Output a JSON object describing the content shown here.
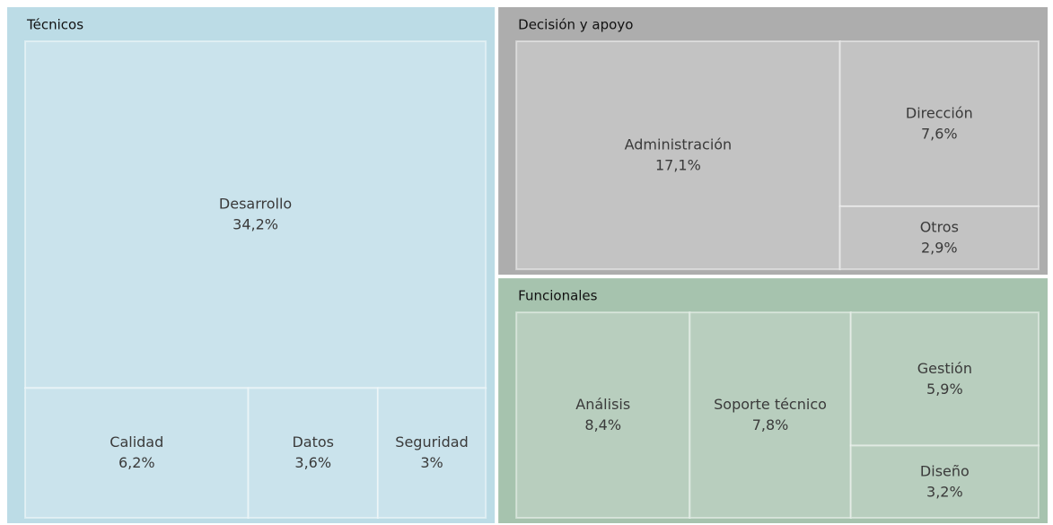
{
  "chart_data": {
    "type": "treemap",
    "groups": [
      {
        "name": "Técnicos",
        "color": "#bcdce6",
        "tile_color": "#cae3ec",
        "categories": [
          "Desarrollo",
          "Calidad",
          "Datos",
          "Seguridad"
        ],
        "values": [
          34.2,
          6.2,
          3.6,
          3
        ],
        "value_labels": [
          "34,2%",
          "6,2%",
          "3,6%",
          "3%"
        ]
      },
      {
        "name": "Decisión y apoyo",
        "color": "#adadad",
        "tile_color": "#c3c3c3",
        "categories": [
          "Administración",
          "Dirección",
          "Otros"
        ],
        "values": [
          17.1,
          7.6,
          2.9
        ],
        "value_labels": [
          "17,1%",
          "7,6%",
          "2,9%"
        ]
      },
      {
        "name": "Funcionales",
        "color": "#a6c3ae",
        "tile_color": "#b8cebe",
        "categories": [
          "Análisis",
          "Soporte técnico",
          "Gestión",
          "Diseño"
        ],
        "values": [
          8.4,
          7.8,
          5.9,
          3.2
        ],
        "value_labels": [
          "8,4%",
          "7,8%",
          "5,9%",
          "3,2%"
        ]
      }
    ]
  }
}
